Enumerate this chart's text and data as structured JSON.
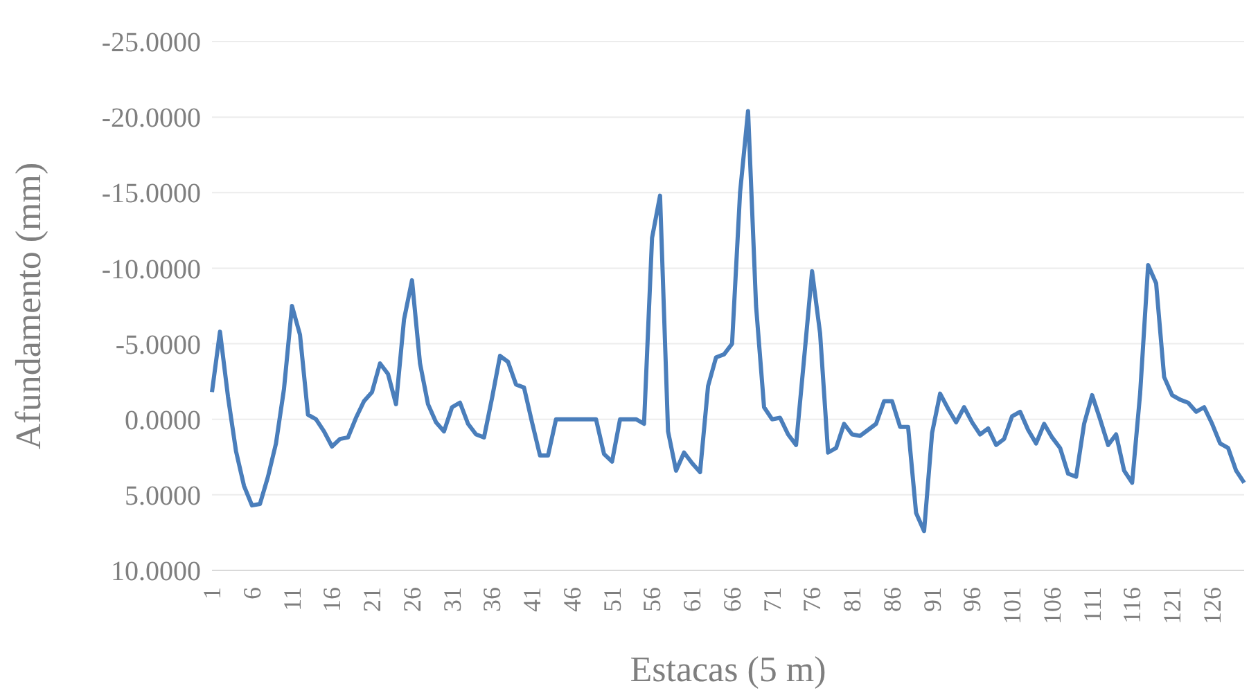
{
  "chart_data": {
    "type": "line",
    "xlabel": "Estacas (5 m)",
    "ylabel": "Afundamento (mm)",
    "categories": [
      "1",
      null,
      null,
      null,
      null,
      "6",
      null,
      null,
      null,
      null,
      "11",
      null,
      null,
      null,
      null,
      "16",
      null,
      null,
      null,
      null,
      "21",
      null,
      null,
      null,
      null,
      "26",
      null,
      null,
      null,
      null,
      "31",
      null,
      null,
      null,
      null,
      "36",
      null,
      null,
      null,
      null,
      "41",
      null,
      null,
      null,
      null,
      "46",
      null,
      null,
      null,
      null,
      "51",
      null,
      null,
      null,
      null,
      "56",
      null,
      null,
      null,
      null,
      "61",
      null,
      null,
      null,
      null,
      "66",
      null,
      null,
      null,
      null,
      "71",
      null,
      null,
      null,
      null,
      "76",
      null,
      null,
      null,
      null,
      "81",
      null,
      null,
      null,
      null,
      "86",
      null,
      null,
      null,
      null,
      "91",
      null,
      null,
      null,
      null,
      "96",
      null,
      null,
      null,
      null,
      "101",
      null,
      null,
      null,
      null,
      "106",
      null,
      null,
      null,
      null,
      "111",
      null,
      null,
      null,
      null,
      "116",
      null,
      null,
      null,
      null,
      "121",
      null,
      null,
      null,
      null,
      "126",
      null,
      null,
      null,
      null
    ],
    "series": [
      {
        "color": "#4a7ebb",
        "values": [
          -1.8,
          -5.8,
          -1.5,
          2.1,
          4.4,
          5.7,
          5.6,
          3.8,
          1.6,
          -2.0,
          -7.5,
          -5.6,
          -0.3,
          0.0,
          0.8,
          1.8,
          1.3,
          1.2,
          -0.1,
          -1.2,
          -1.8,
          -3.7,
          -3.0,
          -1.0,
          -6.6,
          -9.2,
          -3.7,
          -1.0,
          0.2,
          0.8,
          -0.8,
          -1.1,
          0.3,
          1.0,
          1.2,
          -1.4,
          -4.2,
          -3.8,
          -2.3,
          -2.1,
          0.2,
          2.4,
          2.4,
          0.0,
          0.0,
          0.0,
          0.0,
          0.0,
          0.0,
          2.3,
          2.8,
          0.0,
          0.0,
          0.0,
          0.3,
          -12.0,
          -14.8,
          0.8,
          3.4,
          2.2,
          2.9,
          3.5,
          -2.2,
          -4.1,
          -4.3,
          -5.0,
          -15.0,
          -20.4,
          -7.5,
          -0.8,
          0.0,
          -0.1,
          1.0,
          1.7,
          -4.0,
          -9.8,
          -5.7,
          2.2,
          1.9,
          0.3,
          1.0,
          1.1,
          0.7,
          0.3,
          -1.2,
          -1.2,
          0.5,
          0.5,
          6.2,
          7.4,
          0.9,
          -1.7,
          -0.7,
          0.2,
          -0.8,
          0.2,
          1.0,
          0.6,
          1.7,
          1.3,
          -0.2,
          -0.5,
          0.7,
          1.6,
          0.3,
          1.2,
          1.9,
          3.6,
          3.8,
          0.3,
          -1.6,
          0.0,
          1.7,
          1.0,
          3.4,
          4.2,
          -1.7,
          -10.2,
          -9.0,
          -2.8,
          -1.6,
          -1.3,
          -1.1,
          -0.5,
          -0.8,
          0.3,
          1.6,
          1.9,
          3.4,
          4.2
        ]
      }
    ],
    "ylim": [
      10,
      -25
    ],
    "yticks": [
      {
        "value": -25,
        "label": "-25.0000"
      },
      {
        "value": -20,
        "label": "-20.0000"
      },
      {
        "value": -15,
        "label": "-15.0000"
      },
      {
        "value": -10,
        "label": "-10.0000"
      },
      {
        "value": -5,
        "label": "-5.0000"
      },
      {
        "value": 0,
        "label": "0.0000"
      },
      {
        "value": 5,
        "label": "5.0000"
      },
      {
        "value": 10,
        "label": "10.0000"
      }
    ],
    "grid": "y",
    "legend": false,
    "marker": "none",
    "line_style": "solid"
  }
}
